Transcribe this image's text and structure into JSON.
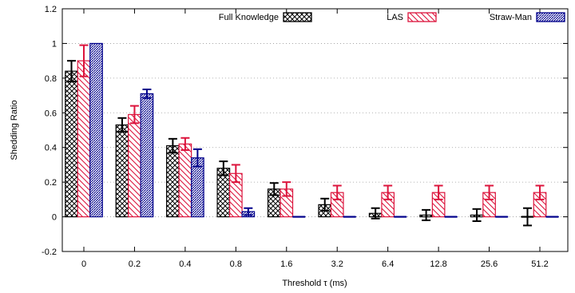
{
  "chart_data": {
    "type": "bar",
    "xlabel": "Threshold τ (ms)",
    "ylabel": "Shedding Ratio",
    "ylim": [
      -0.2,
      1.2
    ],
    "yticks": [
      "-0.2",
      "0",
      "0.2",
      "0.4",
      "0.6",
      "0.8",
      "1",
      "1.2"
    ],
    "categories": [
      "0",
      "0.2",
      "0.4",
      "0.8",
      "1.6",
      "3.2",
      "6.4",
      "12.8",
      "25.6",
      "51.2"
    ],
    "grid": "horizontal dotted",
    "legend_position": "top",
    "series": [
      {
        "name": "Full Knowledge",
        "color": "#000000",
        "pattern": "crosshatch",
        "values": [
          0.84,
          0.53,
          0.41,
          0.28,
          0.16,
          0.07,
          0.02,
          0.01,
          0.01,
          0.0
        ],
        "err": [
          0.06,
          0.04,
          0.04,
          0.04,
          0.035,
          0.035,
          0.03,
          0.03,
          0.035,
          0.05
        ]
      },
      {
        "name": "LAS",
        "color": "#dc143c",
        "pattern": "diagonal",
        "values": [
          0.9,
          0.59,
          0.42,
          0.25,
          0.16,
          0.14,
          0.14,
          0.14,
          0.14,
          0.14
        ],
        "err": [
          0.09,
          0.05,
          0.035,
          0.05,
          0.04,
          0.04,
          0.04,
          0.04,
          0.04,
          0.04
        ]
      },
      {
        "name": "Straw-Man",
        "color": "#00008b",
        "pattern": "dense-dots",
        "values": [
          1.0,
          0.71,
          0.34,
          0.03,
          0.0,
          0.0,
          0.0,
          0.0,
          0.0,
          0.0
        ],
        "err": [
          0.0,
          0.025,
          0.05,
          0.02,
          0.0,
          0.0,
          0.0,
          0.0,
          0.0,
          0.0
        ]
      }
    ]
  }
}
